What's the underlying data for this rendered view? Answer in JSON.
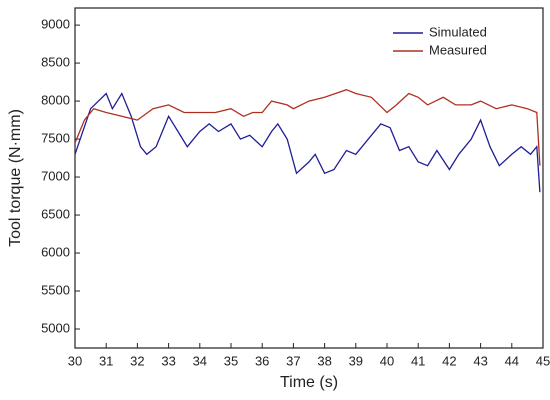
{
  "chart_data": {
    "type": "line",
    "xlabel": "Time (s)",
    "ylabel": "Tool torque (N·mm)",
    "xlim": [
      30,
      45
    ],
    "xticks": [
      30,
      31,
      32,
      33,
      34,
      35,
      36,
      37,
      38,
      39,
      40,
      41,
      42,
      43,
      44,
      45
    ],
    "ylim": [
      4750,
      9225
    ],
    "yticks": [
      5000,
      5500,
      6000,
      6500,
      7000,
      7500,
      8000,
      8500,
      9000
    ],
    "grid": false,
    "legend": "upper right",
    "series": [
      {
        "name": "Simulated",
        "color": "#1f1f99",
        "x": [
          30,
          30.5,
          31,
          31.2,
          31.5,
          31.8,
          32.1,
          32.3,
          32.6,
          33,
          33.3,
          33.6,
          34,
          34.3,
          34.6,
          35,
          35.3,
          35.6,
          36,
          36.3,
          36.5,
          36.8,
          37,
          37.1,
          37.5,
          37.7,
          38,
          38.3,
          38.7,
          39,
          39.4,
          39.8,
          40.1,
          40.4,
          40.7,
          41,
          41.3,
          41.6,
          42,
          42.3,
          42.7,
          43,
          43.3,
          43.6,
          44,
          44.3,
          44.6,
          44.8,
          44.9
        ],
        "values": [
          7300,
          7900,
          8100,
          7900,
          8100,
          7800,
          7400,
          7300,
          7400,
          7800,
          7600,
          7400,
          7600,
          7700,
          7600,
          7700,
          7500,
          7550,
          7400,
          7600,
          7700,
          7500,
          7200,
          7050,
          7200,
          7300,
          7050,
          7100,
          7350,
          7300,
          7500,
          7700,
          7650,
          7350,
          7400,
          7200,
          7150,
          7350,
          7100,
          7300,
          7500,
          7750,
          7400,
          7150,
          7300,
          7400,
          7300,
          7400,
          6800
        ]
      },
      {
        "name": "Measured",
        "color": "#b03020",
        "x": [
          30,
          30.3,
          30.6,
          31,
          31.5,
          32,
          32.5,
          33,
          33.5,
          34,
          34.5,
          35,
          35.4,
          35.7,
          36,
          36.3,
          36.8,
          37,
          37.5,
          38,
          38.7,
          39,
          39.5,
          40,
          40.3,
          40.7,
          41,
          41.3,
          41.8,
          42.2,
          42.7,
          43,
          43.5,
          44,
          44.5,
          44.8,
          44.9
        ],
        "values": [
          7450,
          7750,
          7900,
          7850,
          7800,
          7750,
          7900,
          7950,
          7850,
          7850,
          7850,
          7900,
          7800,
          7850,
          7850,
          8000,
          7950,
          7900,
          8000,
          8050,
          8150,
          8100,
          8050,
          7850,
          7950,
          8100,
          8050,
          7950,
          8050,
          7950,
          7950,
          8000,
          7900,
          7950,
          7900,
          7850,
          7150
        ]
      }
    ]
  }
}
